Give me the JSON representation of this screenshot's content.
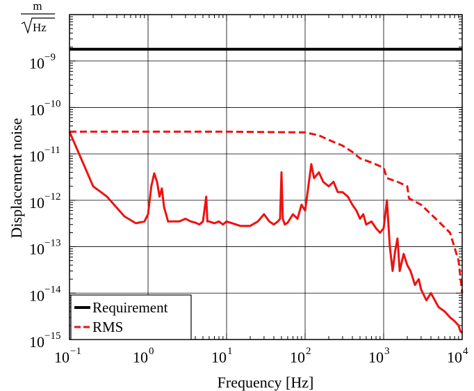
{
  "chart_data": {
    "type": "line",
    "xscale": "log",
    "yscale": "log",
    "xlim": [
      0.1,
      10000
    ],
    "ylim": [
      1e-15,
      1e-08
    ],
    "grid": true,
    "xlabel": "Frequency [Hz]",
    "ylabel": "Displacement noise",
    "yunit": {
      "numerator": "m",
      "denominator": "Hz"
    },
    "x_ticks": [
      {
        "base": "10",
        "exp": "−1",
        "value": 0.1
      },
      {
        "base": "10",
        "exp": "0",
        "value": 1
      },
      {
        "base": "10",
        "exp": "1",
        "value": 10
      },
      {
        "base": "10",
        "exp": "2",
        "value": 100
      },
      {
        "base": "10",
        "exp": "3",
        "value": 1000
      },
      {
        "base": "10",
        "exp": "4",
        "value": 10000
      }
    ],
    "y_ticks": [
      {
        "base": "10",
        "exp": "−9",
        "value": 1e-09
      },
      {
        "base": "10",
        "exp": "−10",
        "value": 1e-10
      },
      {
        "base": "10",
        "exp": "−11",
        "value": 1e-11
      },
      {
        "base": "10",
        "exp": "−12",
        "value": 1e-12
      },
      {
        "base": "10",
        "exp": "−13",
        "value": 1e-13
      },
      {
        "base": "10",
        "exp": "−14",
        "value": 1e-14
      },
      {
        "base": "10",
        "exp": "−15",
        "value": 1e-15
      }
    ],
    "legend_position": "bottom-left",
    "series": [
      {
        "name": "Requirement",
        "color": "#000000",
        "style": "solid",
        "in_legend": true,
        "x": [
          0.1,
          10000
        ],
        "y": [
          1.8e-09,
          1.8e-09
        ]
      },
      {
        "name": "RMS",
        "color": "#ee1111",
        "style": "dashed",
        "in_legend": true,
        "x": [
          0.1,
          1,
          10,
          100,
          150,
          200,
          300,
          400,
          500,
          700,
          1000,
          1100,
          1500,
          2000,
          2100,
          3000,
          5000,
          7000,
          9000,
          10000
        ],
        "y": [
          3e-11,
          3e-11,
          3e-11,
          2.9e-11,
          2.5e-11,
          2e-11,
          1.5e-11,
          1.1e-11,
          8e-12,
          6.5e-12,
          5e-12,
          3e-12,
          2.5e-12,
          2e-12,
          1.1e-12,
          8e-13,
          3.5e-13,
          2e-13,
          5e-14,
          1e-14
        ]
      },
      {
        "name": "",
        "color": "#ee1111",
        "style": "solid",
        "in_legend": false,
        "x": [
          0.1,
          0.2,
          0.3,
          0.5,
          0.7,
          0.9,
          1.0,
          1.1,
          1.2,
          1.3,
          1.4,
          1.5,
          1.6,
          1.7,
          1.8,
          2.0,
          2.5,
          3.0,
          3.5,
          4.0,
          4.5,
          5.0,
          5.5,
          5.7,
          6.0,
          7.0,
          8.0,
          9.0,
          10,
          15,
          20,
          25,
          30,
          35,
          40,
          45,
          48,
          50,
          52,
          55,
          60,
          70,
          80,
          90,
          100,
          110,
          120,
          130,
          150,
          170,
          200,
          230,
          260,
          300,
          350,
          400,
          450,
          500,
          550,
          600,
          700,
          800,
          900,
          1000,
          1100,
          1200,
          1300,
          1400,
          1500,
          1600,
          1800,
          2000,
          2200,
          2500,
          2800,
          3000,
          3500,
          4000,
          5000,
          6000,
          7000,
          8000,
          9000,
          9500,
          10000
        ],
        "y": [
          3e-11,
          2e-12,
          1.2e-12,
          4.5e-13,
          3.2e-13,
          3.5e-13,
          5e-13,
          2e-12,
          3.8e-12,
          2.5e-12,
          1.2e-12,
          1.8e-12,
          7e-13,
          5e-13,
          3.5e-13,
          3.5e-13,
          3.5e-13,
          4e-13,
          3.5e-13,
          3.3e-13,
          3e-13,
          3.5e-13,
          1.2e-12,
          3.5e-13,
          3.5e-13,
          3.2e-13,
          3.5e-13,
          3e-13,
          3.5e-13,
          2.8e-13,
          2.8e-13,
          3.5e-13,
          5e-13,
          3.5e-13,
          3e-13,
          3.5e-13,
          4e-13,
          4e-12,
          4e-13,
          3e-13,
          3.3e-13,
          5e-13,
          4e-13,
          8e-13,
          6e-13,
          2e-12,
          6e-12,
          3e-12,
          4e-12,
          2.5e-12,
          2e-12,
          2.5e-12,
          1.5e-12,
          1.5e-12,
          1.2e-12,
          8e-13,
          6e-13,
          4e-13,
          5e-13,
          3e-13,
          3.5e-13,
          2.5e-13,
          2e-13,
          2.5e-13,
          1e-12,
          1e-13,
          3e-14,
          8e-14,
          1.5e-13,
          3e-14,
          7e-14,
          4e-14,
          3e-14,
          1.5e-14,
          2e-14,
          1.2e-14,
          7e-15,
          1e-14,
          5e-15,
          4e-15,
          3e-15,
          2.5e-15,
          2e-15,
          1.5e-15,
          1.4e-15
        ]
      }
    ]
  }
}
